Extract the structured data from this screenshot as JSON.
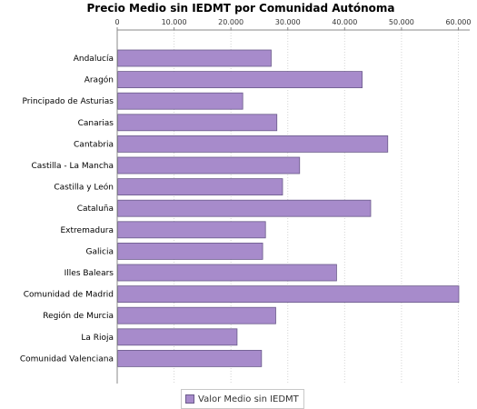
{
  "chart_data": {
    "type": "bar",
    "orientation": "horizontal",
    "title": "Precio Medio sin IEDMT por Comunidad Autónoma",
    "xlabel": "",
    "ylabel": "",
    "xlim": [
      0,
      62000
    ],
    "ticks": [
      {
        "value": 0,
        "label": "0"
      },
      {
        "value": 10000,
        "label": "10.000"
      },
      {
        "value": 20000,
        "label": "20.000"
      },
      {
        "value": 30000,
        "label": "30.000"
      },
      {
        "value": 40000,
        "label": "40.000"
      },
      {
        "value": 50000,
        "label": "50.000"
      },
      {
        "value": 60000,
        "label": "60.000"
      }
    ],
    "axis_position": "top",
    "grid": true,
    "legend_position": "bottom-center",
    "categories": [
      "Andalucía",
      "Aragón",
      "Principado de Asturias",
      "Canarias",
      "Cantabria",
      "Castilla - La Mancha",
      "Castilla y León",
      "Cataluña",
      "Extremadura",
      "Galicia",
      "Illes Balears",
      "Comunidad de Madrid",
      "Región de Murcia",
      "La Rioja",
      "Comunidad Valenciana"
    ],
    "series": [
      {
        "name": "Valor Medio sin IEDMT",
        "color": "#a78bcb",
        "values": [
          27000,
          43000,
          22000,
          28000,
          47500,
          32000,
          29000,
          44500,
          26000,
          25500,
          38500,
          60000,
          27800,
          21000,
          25300
        ]
      }
    ]
  }
}
